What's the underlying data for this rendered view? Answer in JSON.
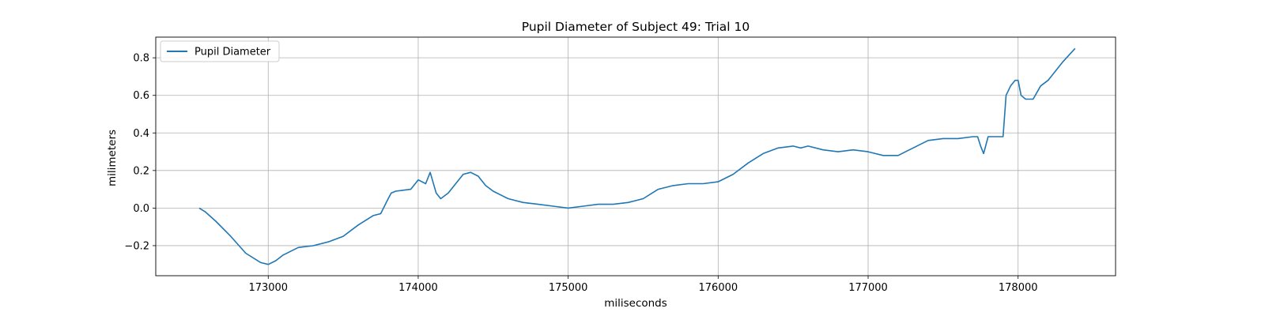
{
  "chart_data": {
    "type": "line",
    "title": "Pupil Diameter of Subject 49: Trial 10",
    "xlabel": "miliseconds",
    "ylabel": "milimeters",
    "xlim": [
      172250,
      178650
    ],
    "ylim": [
      -0.36,
      0.91
    ],
    "xticks": [
      173000,
      174000,
      175000,
      176000,
      177000,
      178000
    ],
    "yticks": [
      -0.2,
      0.0,
      0.2,
      0.4,
      0.6,
      0.8
    ],
    "xtick_labels": [
      "173000",
      "174000",
      "175000",
      "176000",
      "177000",
      "178000"
    ],
    "ytick_labels": [
      "−0.2",
      "0.0",
      "0.2",
      "0.4",
      "0.6",
      "0.8"
    ],
    "grid": true,
    "legend": {
      "position": "top-left"
    },
    "series": [
      {
        "name": "Pupil Diameter",
        "color": "#1f77b4",
        "x": [
          172540,
          172580,
          172650,
          172750,
          172850,
          172950,
          173000,
          173050,
          173100,
          173200,
          173300,
          173400,
          173500,
          173600,
          173700,
          173750,
          173800,
          173820,
          173850,
          173950,
          174000,
          174050,
          174080,
          174120,
          174150,
          174200,
          174250,
          174300,
          174350,
          174400,
          174450,
          174500,
          174600,
          174700,
          174800,
          174900,
          175000,
          175100,
          175200,
          175300,
          175400,
          175500,
          175600,
          175700,
          175800,
          175900,
          176000,
          176100,
          176200,
          176300,
          176400,
          176500,
          176550,
          176600,
          176700,
          176800,
          176900,
          177000,
          177100,
          177200,
          177300,
          177400,
          177500,
          177600,
          177700,
          177730,
          177750,
          177770,
          177800,
          177900,
          177920,
          177950,
          177980,
          178000,
          178020,
          178050,
          178100,
          178150,
          178200,
          178300,
          178380
        ],
        "y": [
          0.0,
          -0.02,
          -0.07,
          -0.15,
          -0.24,
          -0.29,
          -0.3,
          -0.28,
          -0.25,
          -0.21,
          -0.2,
          -0.18,
          -0.15,
          -0.09,
          -0.04,
          -0.03,
          0.05,
          0.08,
          0.09,
          0.1,
          0.15,
          0.13,
          0.19,
          0.08,
          0.05,
          0.08,
          0.13,
          0.18,
          0.19,
          0.17,
          0.12,
          0.09,
          0.05,
          0.03,
          0.02,
          0.01,
          0.0,
          0.01,
          0.02,
          0.02,
          0.03,
          0.05,
          0.1,
          0.12,
          0.13,
          0.13,
          0.14,
          0.18,
          0.24,
          0.29,
          0.32,
          0.33,
          0.32,
          0.33,
          0.31,
          0.3,
          0.31,
          0.3,
          0.28,
          0.28,
          0.32,
          0.36,
          0.37,
          0.37,
          0.38,
          0.38,
          0.33,
          0.29,
          0.38,
          0.38,
          0.6,
          0.65,
          0.68,
          0.68,
          0.6,
          0.58,
          0.58,
          0.65,
          0.68,
          0.78,
          0.85
        ]
      }
    ]
  }
}
